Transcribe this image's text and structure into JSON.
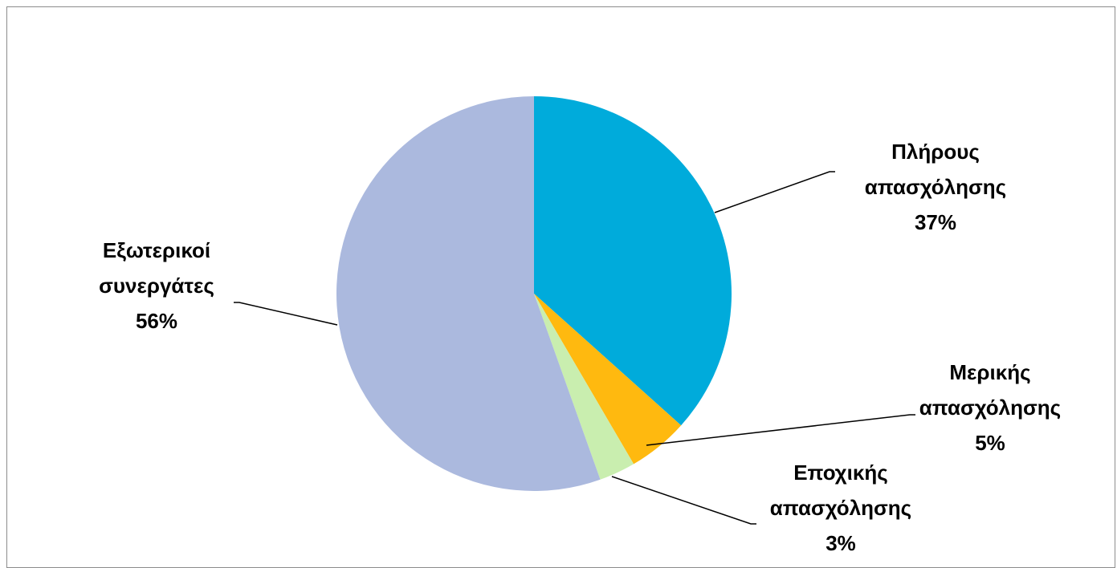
{
  "chart_data": {
    "type": "pie",
    "start_angle_deg": 0,
    "direction": "clockwise",
    "slices": [
      {
        "label_lines": [
          "Πλήρους",
          "απασχόλησης"
        ],
        "pct_label": "37%",
        "value": 37,
        "color": "#00abdb"
      },
      {
        "label_lines": [
          "Μερικής",
          "απασχόλησης"
        ],
        "pct_label": "5%",
        "value": 5,
        "color": "#ffb90f"
      },
      {
        "label_lines": [
          "Εποχικής",
          "απασχόλησης"
        ],
        "pct_label": "3%",
        "value": 3,
        "color": "#c9eeaf"
      },
      {
        "label_lines": [
          "Εξωτερικοί",
          "συνεργάτες"
        ],
        "pct_label": "56%",
        "value": 56,
        "color": "#abb9de"
      }
    ],
    "legend": "none",
    "label_position": "outside with leader lines"
  }
}
